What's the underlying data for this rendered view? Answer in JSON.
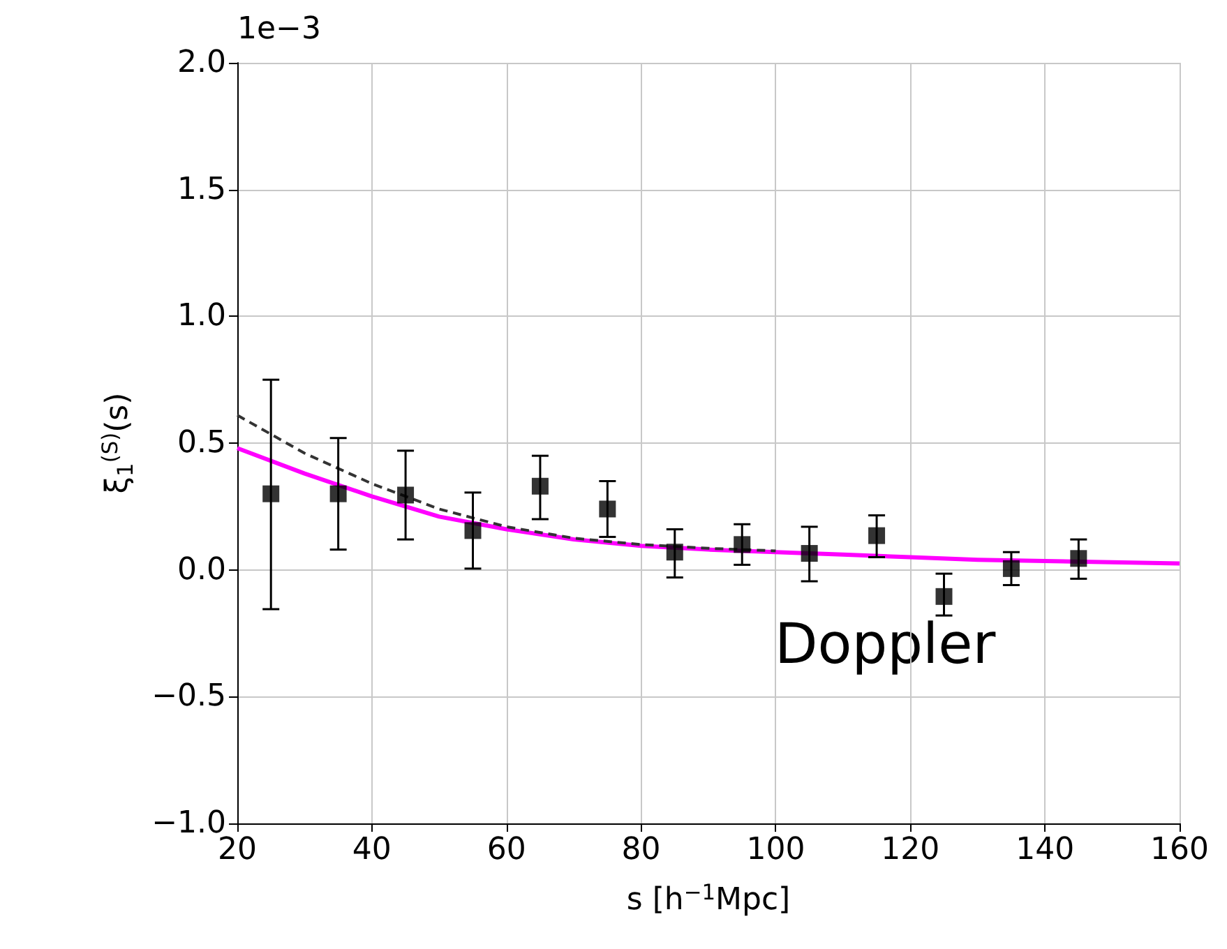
{
  "chart_data": {
    "type": "scatter",
    "xlabel": "s [h$^{−1}$Mpc]",
    "ylabel": "ξ$_{1}$$^{(S)}$(s)",
    "annotations": [
      "1e−3",
      "Doppler"
    ],
    "xlim": [
      20,
      160
    ],
    "xticks": [
      20,
      40,
      60,
      80,
      100,
      120,
      140,
      160
    ],
    "ylim": [
      -1.0,
      2.0
    ],
    "yticks": [
      {
        "value": -1.0,
        "label": "−1.0"
      },
      {
        "value": -0.5,
        "label": "−0.5"
      },
      {
        "value": 0,
        "label": "0.0"
      },
      {
        "value": 0.5,
        "label": "0.5"
      },
      {
        "value": 1.0,
        "label": "1.0"
      },
      {
        "value": 1.5,
        "label": "1.5"
      },
      {
        "value": 2.0,
        "label": "2.0"
      }
    ],
    "grid": true,
    "series": [
      {
        "type": "line",
        "color": "#ff00ff",
        "marker": "none",
        "line_style": "solid",
        "x": [
          20,
          30,
          40,
          50,
          60,
          70,
          80,
          90,
          100,
          110,
          120,
          130,
          140,
          150,
          160
        ],
        "values": [
          0.48,
          0.38,
          0.29,
          0.21,
          0.16,
          0.12,
          0.095,
          0.08,
          0.07,
          0.06,
          0.05,
          0.04,
          0.035,
          0.03,
          0.025
        ]
      },
      {
        "type": "line",
        "color": "#333333",
        "marker": "none",
        "line_style": "dashed",
        "x": [
          20,
          30,
          40,
          50,
          60,
          70,
          80,
          90,
          100
        ],
        "values": [
          0.61,
          0.46,
          0.34,
          0.24,
          0.17,
          0.125,
          0.1,
          0.085,
          0.075
        ]
      },
      {
        "color": "#000000",
        "marker": "square",
        "x": [
          25,
          35,
          45,
          55,
          65,
          75,
          85,
          95,
          105,
          115,
          125,
          135,
          145
        ],
        "values": [
          0.3,
          0.3,
          0.295,
          0.155,
          0.33,
          0.24,
          0.07,
          0.1,
          0.065,
          0.135,
          -0.105,
          0.005,
          0.045
        ],
        "errors": [
          [
            -0.155,
            0.75
          ],
          [
            0.08,
            0.52
          ],
          [
            0.12,
            0.47
          ],
          [
            0.005,
            0.305
          ],
          [
            0.2,
            0.45
          ],
          [
            0.13,
            0.35
          ],
          [
            -0.03,
            0.16
          ],
          [
            0.02,
            0.18
          ],
          [
            -0.045,
            0.17
          ],
          [
            0.05,
            0.215
          ],
          [
            -0.18,
            -0.015
          ],
          [
            -0.06,
            0.07
          ],
          [
            -0.035,
            0.12
          ]
        ]
      }
    ]
  }
}
